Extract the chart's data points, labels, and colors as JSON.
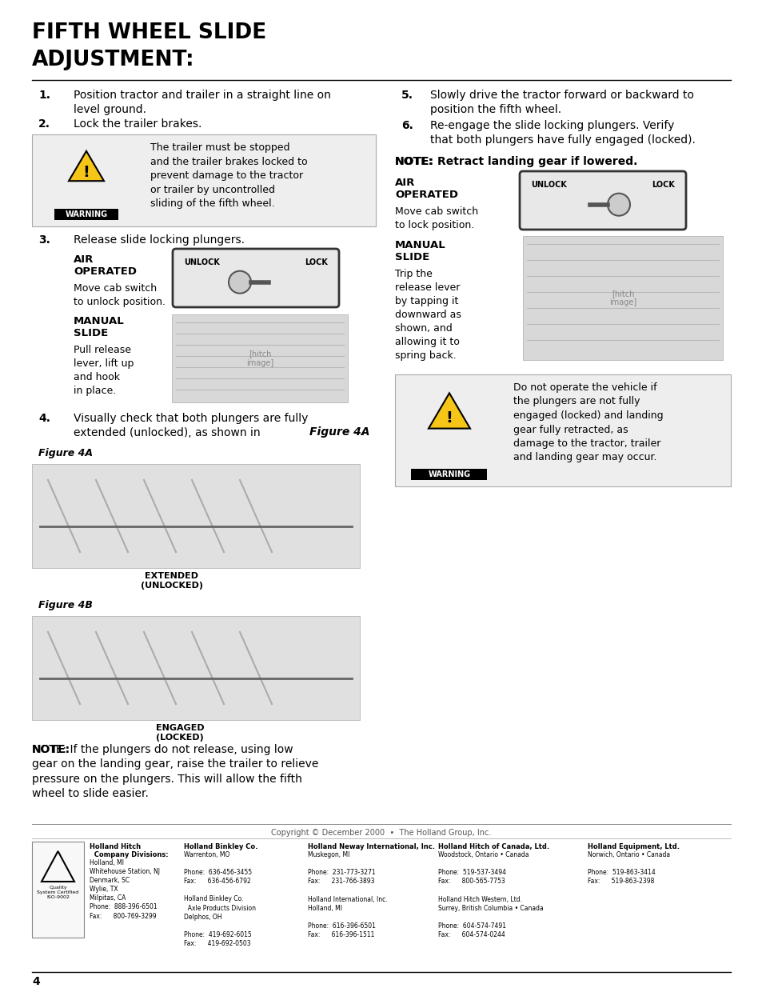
{
  "title_line1": "FIFTH WHEEL SLIDE",
  "title_line2": "ADJUSTMENT:",
  "step1": "Position tractor and trailer in a straight line on level ground.",
  "step2": "Lock the trailer brakes.",
  "warn1_text": "The trailer must be stopped\nand the trailer brakes locked to\nprevent damage to the tractor\nor trailer by uncontrolled\nsliding of the fifth wheel.",
  "step3": "Release slide locking plungers.",
  "air_op_label": "AIR\nOPERATED",
  "air_op_desc_left": "Move cab switch\nto unlock position.",
  "manual_slide_label": "MANUAL\nSLIDE",
  "manual_slide_desc_left": "Pull release\nlever, lift up\nand hook\nin place.",
  "step4_text": "Visually check that both plungers are fully\nextended (unlocked), as shown in ",
  "step4_italic": "Figure 4A",
  "step4_dot": ".",
  "fig4a_label": "Figure 4A",
  "fig4a_caption": "EXTENDED\n(UNLOCKED)",
  "fig4b_label": "Figure 4B",
  "fig4b_caption": "ENGAGED\n(LOCKED)",
  "note_left_bold": "NOTE:",
  "note_left_text": " If the plungers do not release, using low\ngear on the landing gear, raise the trailer to relieve\npressure on the plungers. This will allow the fifth\nwheel to slide easier.",
  "step5": "Slowly drive the tractor forward or backward to\nposition the fifth wheel.",
  "step6": "Re-engage the slide locking plungers. Verify\nthat both plungers have fully engaged (locked).",
  "note_right_bold": "NOTE:",
  "note_right_text": " Retract landing gear if lowered.",
  "air_op_label_r": "AIR\nOPERATED",
  "air_op_desc_right": "Move cab switch\nto lock position.",
  "manual_slide_label_r": "MANUAL\nSLIDE",
  "manual_slide_desc_right": "Trip the\nrelease lever\nby tapping it\ndownward as\nshown, and\nallowing it to\nspring back.",
  "warn2_text": "Do not operate the vehicle if\nthe plungers are not fully\nengaged (locked) and landing\ngear fully retracted, as\ndamage to the tractor, trailer\nand landing gear may occur.",
  "copyright": "Copyright © December 2000  •  The Holland Group, Inc.",
  "page_num": "4",
  "footer_cols": [
    {
      "bold": "Holland Hitch\n  Company Divisions:",
      "normal": "Holland, MI\nWhitehouse Station, NJ\nDenmark, SC\nWylie, TX\nMilpitas, CA\nPhone:  888-396-6501\nFax:      800-769-3299"
    },
    {
      "bold": "Holland Binkley Co.",
      "normal": "Warrenton, MO\n\nPhone:  636-456-3455\nFax:      636-456-6792\n\nHolland Binkley Co.\n  Axle Products Division\nDelphos, OH\n\nPhone:  419-692-6015\nFax:      419-692-0503"
    },
    {
      "bold": "Holland Neway International, Inc.",
      "normal": "Muskegon, MI\n\nPhone:  231-773-3271\nFax:      231-766-3893\n\nHolland International, Inc.\nHolland, MI\n\nPhone:  616-396-6501\nFax:      616-396-1511"
    },
    {
      "bold": "Holland Hitch of Canada, Ltd.",
      "normal": "Woodstock, Ontario • Canada\n\nPhone:  519-537-3494\nFax:      800-565-7753\n\nHolland Hitch Western, Ltd.\nSurrey, British Columbia • Canada\n\nPhone:  604-574-7491\nFax:      604-574-0244"
    },
    {
      "bold": "Holland Equipment, Ltd.",
      "normal": "Norwich, Ontario • Canada\n\nPhone:  519-863-3414\nFax:      519-863-2398"
    }
  ]
}
